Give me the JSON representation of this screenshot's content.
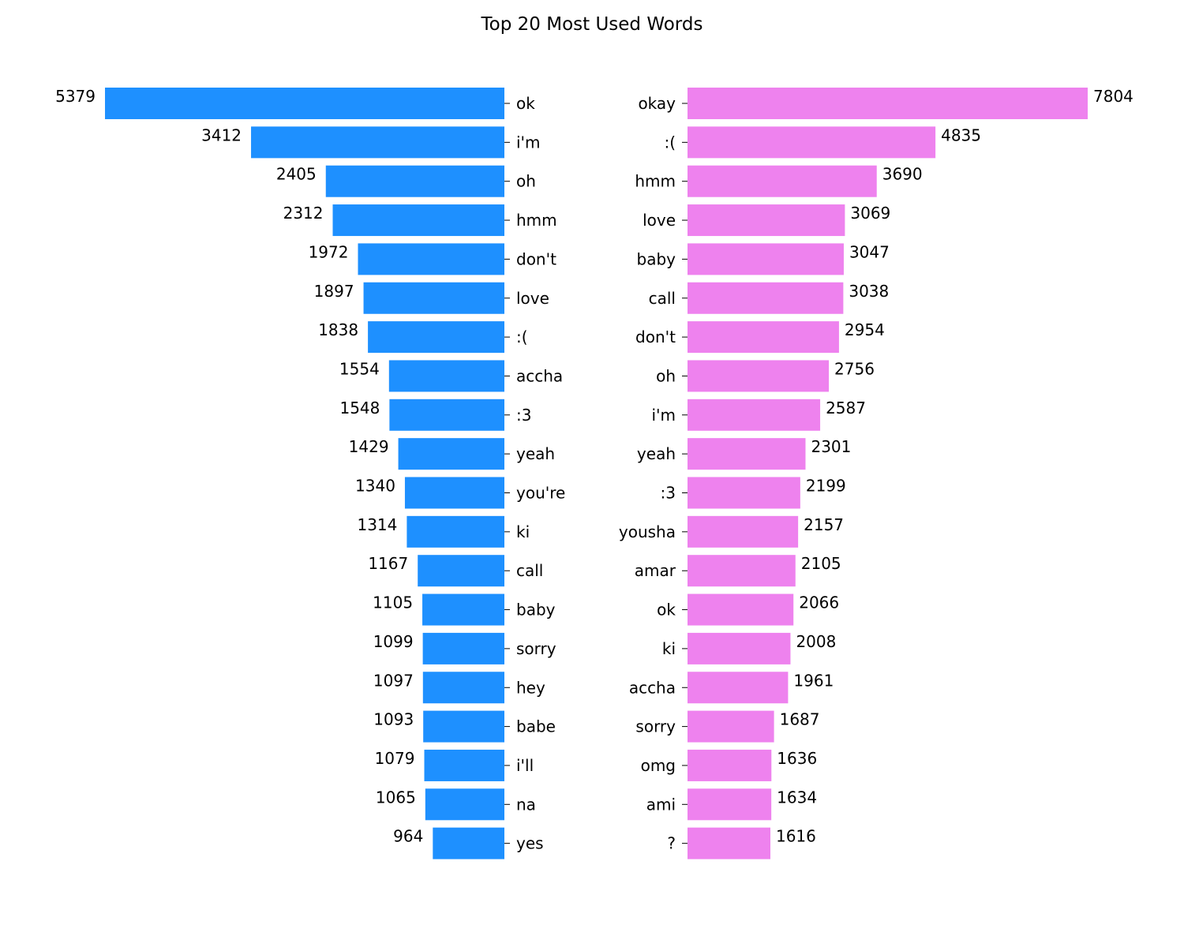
{
  "chart_data": {
    "type": "bar",
    "title": "Top 20 Most Used Words",
    "colors": {
      "left": "#1e90ff",
      "right": "#ee82ee"
    },
    "left": {
      "categories": [
        "ok",
        "i'm",
        "oh",
        "hmm",
        "don't",
        "love",
        ":(",
        "accha",
        ":3",
        "yeah",
        "you're",
        "ki",
        "call",
        "baby",
        "sorry",
        "hey",
        "babe",
        "i'll",
        "na",
        "yes"
      ],
      "values": [
        5379,
        3412,
        2405,
        2312,
        1972,
        1897,
        1838,
        1554,
        1548,
        1429,
        1340,
        1314,
        1167,
        1105,
        1099,
        1097,
        1093,
        1079,
        1065,
        964
      ]
    },
    "right": {
      "categories": [
        "okay",
        ":(",
        "hmm",
        "love",
        "baby",
        "call",
        "don't",
        "oh",
        "i'm",
        "yeah",
        ":3",
        "yousha",
        "amar",
        "ok",
        "ki",
        "accha",
        "sorry",
        "omg",
        "ami",
        "?"
      ],
      "values": [
        7804,
        4835,
        3690,
        3069,
        3047,
        3038,
        2954,
        2756,
        2587,
        2301,
        2199,
        2157,
        2105,
        2066,
        2008,
        1961,
        1687,
        1636,
        1634,
        1616
      ]
    }
  }
}
